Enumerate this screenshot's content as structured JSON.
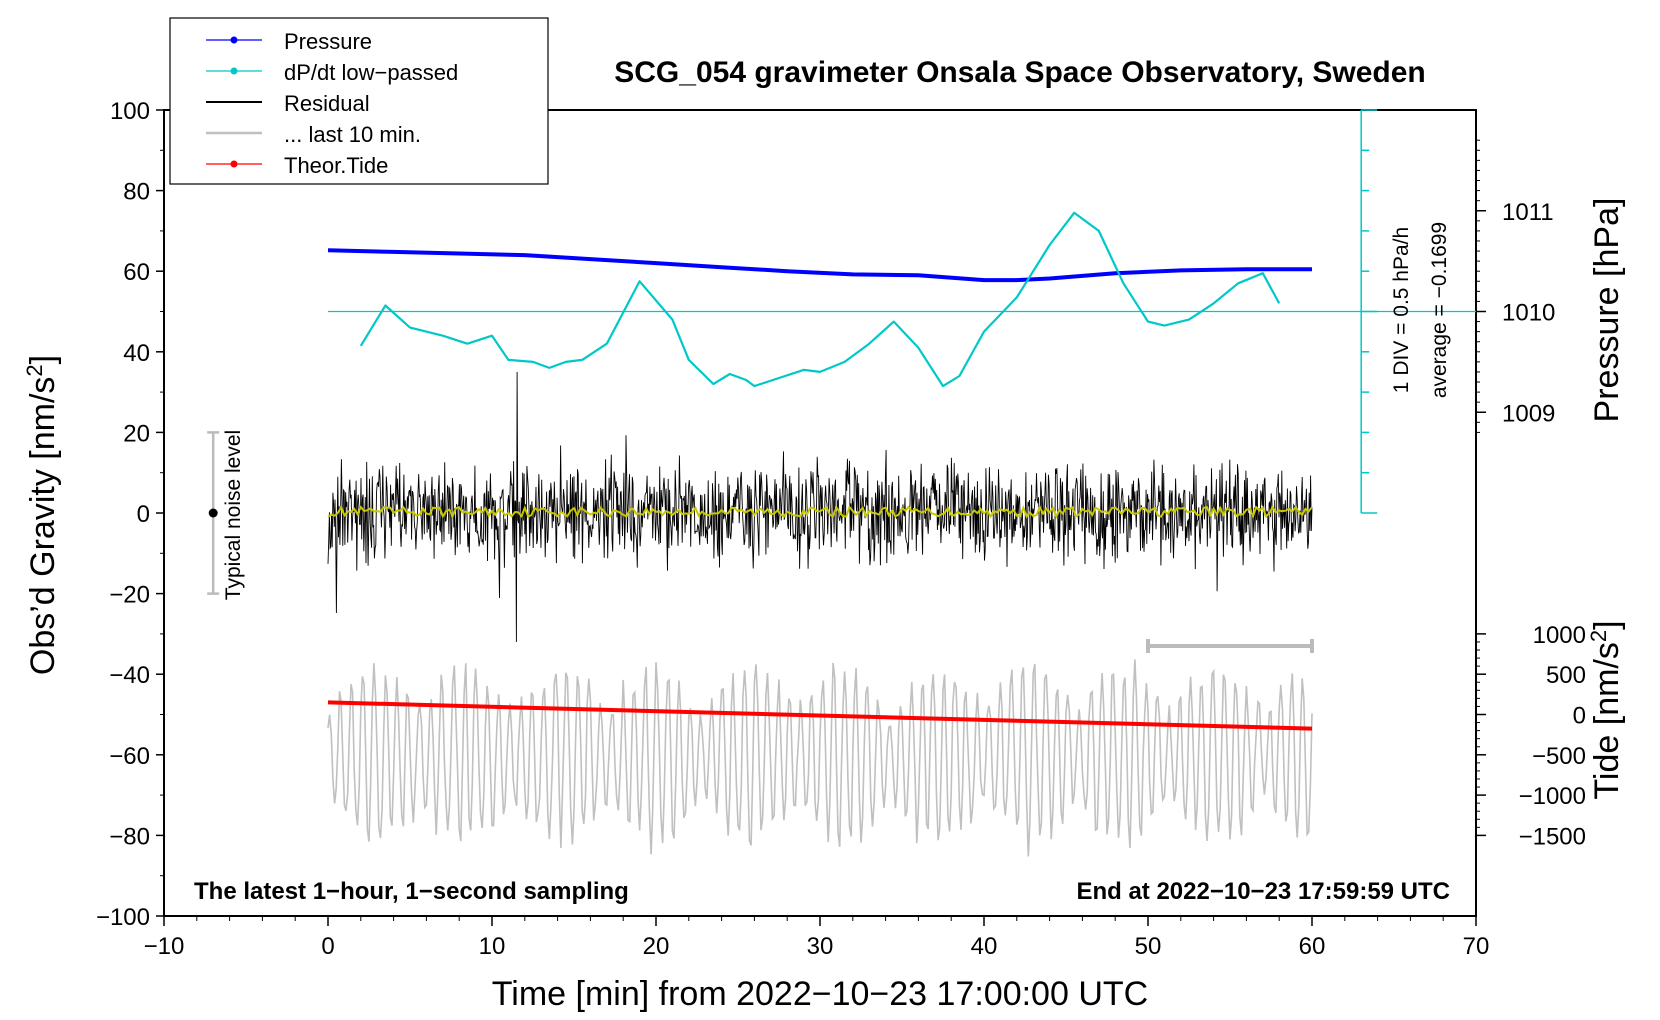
{
  "chart_data": {
    "type": "line",
    "title": "SCG_054 gravimeter Onsala Space Observatory, Sweden",
    "xlabel": "Time [min] from 2022−10−23 17:00:00 UTC",
    "ylabel_left": "Obs’d Gravity [nm/s",
    "ylabel_left_sup": "2",
    "ylabel_left_end": "]",
    "ylabel_right_pressure": "Pressure [hPa]",
    "ylabel_right_tide": "Tide [nm/s",
    "ylabel_right_tide_sup": "2",
    "ylabel_right_tide_end": "]",
    "xlim": [
      -10,
      70
    ],
    "ylim": [
      -100,
      100
    ],
    "x_ticks": [
      "−10",
      "0",
      "10",
      "20",
      "30",
      "40",
      "50",
      "60",
      "70"
    ],
    "x_tick_values": [
      -10,
      0,
      10,
      20,
      30,
      40,
      50,
      60,
      70
    ],
    "y_ticks": [
      "100",
      "80",
      "60",
      "40",
      "20",
      "0",
      "−20",
      "−40",
      "−60",
      "−80",
      "−100"
    ],
    "y_tick_values": [
      100,
      80,
      60,
      40,
      20,
      0,
      -20,
      -40,
      -60,
      -80,
      -100
    ],
    "pressure_axis": {
      "ticks": [
        "1011",
        "1010",
        "1009"
      ],
      "tick_values": [
        1011,
        1010,
        1009
      ],
      "ref_hpa": 1010,
      "ref_gravity": 50,
      "gravity_per_hpa": 25
    },
    "tide_axis": {
      "ticks": [
        "1000",
        "500",
        "0",
        "−500",
        "−1000",
        "−1500"
      ],
      "tick_values": [
        1000,
        500,
        0,
        -500,
        -1000,
        -1500
      ],
      "gravity_at_zero": -50,
      "gravity_per_unit": 0.02
    },
    "legend": {
      "position": "top-left",
      "entries": [
        {
          "label": "Pressure",
          "color": "#0000ff",
          "marker": true
        },
        {
          "label": "dP/dt low−passed",
          "color": "#00c8c8",
          "marker": true
        },
        {
          "label": "Residual",
          "color": "#000000",
          "marker": false
        },
        {
          "label": "... last 10 min.",
          "color": "#c0c0c0",
          "marker": false
        },
        {
          "label": "Theor.Tide",
          "color": "#ff0000",
          "marker": true
        }
      ]
    },
    "annotations": {
      "bottom_left": "The latest 1−hour, 1−second sampling",
      "bottom_right": "End at 2022−10−23 17:59:59 UTC",
      "noise_label": "Typical noise level",
      "noise_range": [
        -20,
        20
      ],
      "dpdt_scale": "1 DIV = 0.5 hPa/h",
      "dpdt_average": "average = −0.1699",
      "dpdt_baseline": 50,
      "dpdt_axis_x": 63,
      "dpdt_axis_range": [
        0,
        100
      ],
      "last10_range": [
        50,
        60
      ]
    },
    "series": [
      {
        "name": "Pressure",
        "color": "#0000ff",
        "x": [
          0,
          4,
          8,
          12,
          16,
          20,
          24,
          28,
          32,
          36,
          40,
          42,
          44,
          48,
          52,
          56,
          60
        ],
        "y": [
          65.2,
          64.8,
          64.4,
          64.0,
          63.0,
          62.0,
          61.0,
          60.0,
          59.2,
          59.0,
          57.8,
          57.8,
          58.2,
          59.5,
          60.2,
          60.5,
          60.5
        ]
      },
      {
        "name": "dP/dt low−passed",
        "color": "#00c8c8",
        "x": [
          2,
          3.5,
          5,
          7,
          8.5,
          10,
          11,
          12.5,
          13.5,
          14.5,
          15.5,
          17,
          19,
          21,
          22,
          23.5,
          24.5,
          25.5,
          26,
          27.5,
          29,
          30,
          31.5,
          33,
          34.5,
          36,
          37.5,
          38.5,
          40,
          42,
          44,
          45.5,
          47,
          48.5,
          50,
          51,
          52.5,
          54,
          55.5,
          57,
          58
        ],
        "y": [
          41.5,
          51.5,
          46,
          44,
          42,
          44,
          38,
          37.5,
          36,
          37.5,
          38,
          42,
          57.5,
          48,
          38,
          32,
          34.5,
          33,
          31.5,
          33.5,
          35.5,
          35,
          37.5,
          42,
          47.5,
          41,
          31.5,
          34,
          45,
          53.5,
          66.5,
          74.5,
          70,
          57,
          47.5,
          46.5,
          48,
          52,
          57,
          59.5,
          52
        ]
      },
      {
        "name": "Theor.Tide",
        "color": "#ff0000",
        "x": [
          0,
          60
        ],
        "y": [
          -47,
          -53.5
        ]
      }
    ],
    "residual": {
      "x_range": [
        0,
        60
      ],
      "typical_amplitude": 10,
      "spike_x": 11.5,
      "spike_max": 35,
      "spike_min": -32
    },
    "last10": {
      "x_range": [
        0,
        60
      ],
      "center": -60,
      "amplitude": 20
    }
  }
}
